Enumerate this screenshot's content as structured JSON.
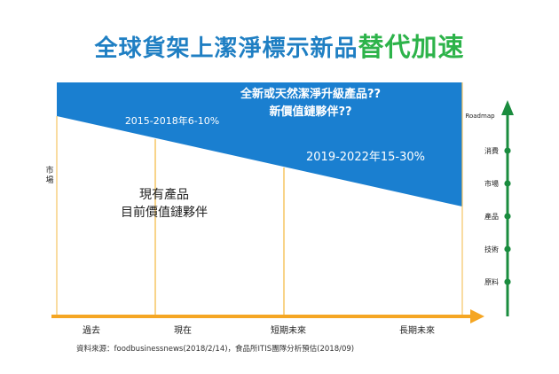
{
  "page": {
    "title_main": "全球貨架上潔淨標示新品",
    "title_accent": "替代加速",
    "source": "資料來源：foodbusinessnews(2018/2/14)，食品所ITIS團隊分析預估(2018/09)"
  },
  "chart_data": {
    "type": "area",
    "y_axis_label": "市場",
    "x_ticks": [
      "過去",
      "現在",
      "短期未來",
      "長期未來"
    ],
    "upper_region": {
      "title_line1": "全新或天然潔淨升級產品??",
      "title_line2": "新價值鏈夥伴??",
      "color": "#1a7fd0"
    },
    "lower_region": {
      "label_line1": "現有產品",
      "label_line2": "目前價值鏈夥伴"
    },
    "annotations": [
      {
        "period": "2015-2018",
        "text": "2015-2018年6-10%",
        "share_low": 6,
        "share_high": 10
      },
      {
        "period": "2019-2022",
        "text": "2019-2022年15-30%",
        "share_low": 15,
        "share_high": 30
      }
    ],
    "roadmap": {
      "title": "Roadmap",
      "items": [
        "消費",
        "市場",
        "產品",
        "技術",
        "原料"
      ],
      "color": "#1a8c3e"
    },
    "axis_color": "#f5a623"
  }
}
